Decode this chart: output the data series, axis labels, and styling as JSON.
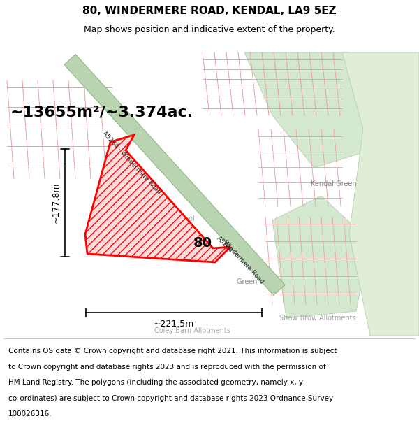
{
  "title": "80, WINDERMERE ROAD, KENDAL, LA9 5EZ",
  "subtitle": "Map shows position and indicative extent of the property.",
  "area_text": "~13655m²/~3.374ac.",
  "width_label": "~221.5m",
  "height_label": "~177.8m",
  "number_label": "80",
  "footer_lines": [
    "Contains OS data © Crown copyright and database right 2021. This information is subject",
    "to Crown copyright and database rights 2023 and is reproduced with the permission of",
    "HM Land Registry. The polygons (including the associated geometry, namely x, y",
    "co-ordinates) are subject to Crown copyright and database rights 2023 Ordnance Survey",
    "100026316."
  ],
  "title_fontsize": 11,
  "subtitle_fontsize": 9,
  "footer_fontsize": 7.5,
  "map_bg": "#f0ebe5"
}
